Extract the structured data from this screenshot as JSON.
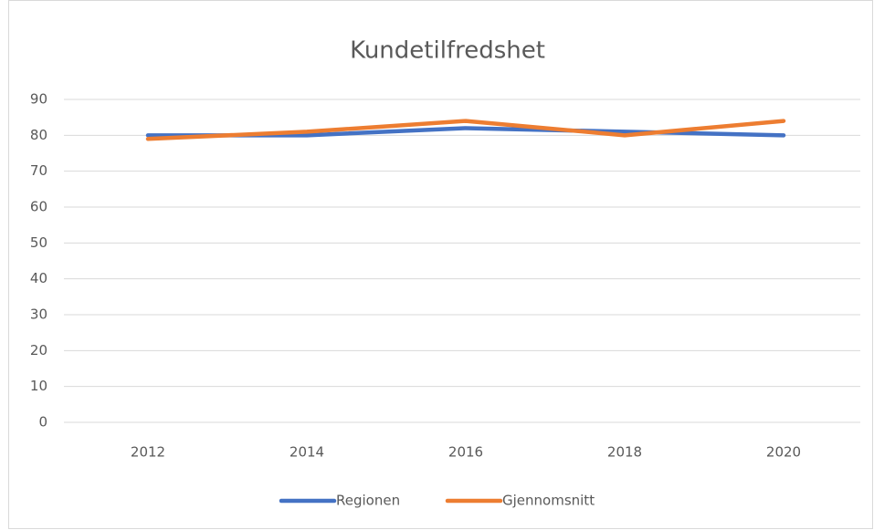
{
  "chart_data": {
    "type": "line",
    "title": "Kundetilfredshet",
    "categories": [
      "2012",
      "2014",
      "2016",
      "2018",
      "2020"
    ],
    "series": [
      {
        "name": "Regionen",
        "color": "#4472c4",
        "values": [
          80,
          80,
          82,
          81,
          80
        ]
      },
      {
        "name": "Gjennomsnitt",
        "color": "#ed7d31",
        "values": [
          79,
          81,
          84,
          80,
          84
        ]
      }
    ],
    "ylim": [
      0,
      90
    ],
    "yticks": [
      0,
      10,
      20,
      30,
      40,
      50,
      60,
      70,
      80,
      90
    ],
    "grid": true,
    "legend": "bottom"
  }
}
